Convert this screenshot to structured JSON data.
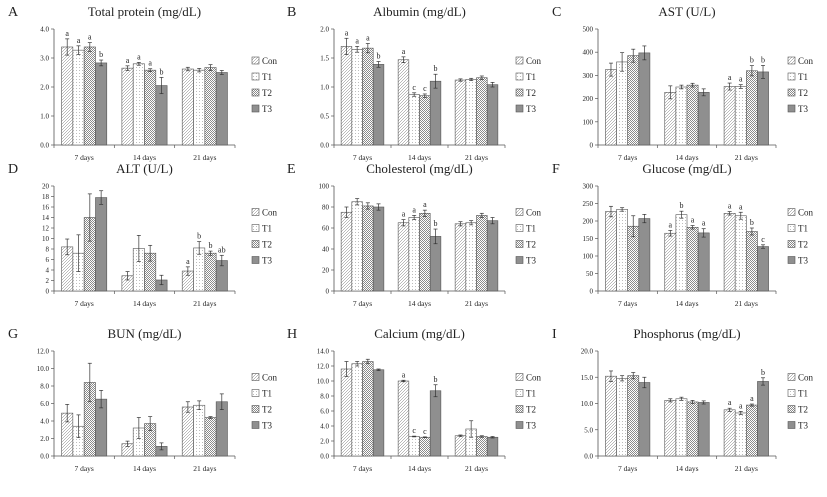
{
  "legend": [
    "Con",
    "T1",
    "T2",
    "T3"
  ],
  "categories": [
    "7 days",
    "14 days",
    "21 days"
  ],
  "series_colors": [
    "#ffffff",
    "#f4f4f4",
    "#e6e6e6",
    "#8f8f8f"
  ],
  "chart_data": [
    {
      "type": "bar",
      "label": "A",
      "title": "Total protein (mg/dL)",
      "categories": [
        "7 days",
        "14 days",
        "21 days"
      ],
      "ylim": [
        0,
        4
      ],
      "yticks": [
        "0.0",
        "1.0",
        "2.0",
        "3.0",
        "4.0"
      ],
      "series": [
        {
          "name": "Con",
          "values": [
            3.38,
            2.65,
            2.62
          ],
          "errors": [
            0.28,
            0.08,
            0.06
          ],
          "sig": [
            "a",
            "a",
            ""
          ]
        },
        {
          "name": "T1",
          "values": [
            3.27,
            2.8,
            2.58
          ],
          "errors": [
            0.15,
            0.05,
            0.06
          ],
          "sig": [
            "a",
            "a",
            ""
          ]
        },
        {
          "name": "T2",
          "values": [
            3.38,
            2.58,
            2.67
          ],
          "errors": [
            0.15,
            0.05,
            0.1
          ],
          "sig": [
            "a",
            "a",
            ""
          ]
        },
        {
          "name": "T3",
          "values": [
            2.83,
            2.05,
            2.5
          ],
          "errors": [
            0.1,
            0.28,
            0.07
          ],
          "sig": [
            "b",
            "b",
            ""
          ]
        }
      ]
    },
    {
      "type": "bar",
      "label": "B",
      "title": "Albumin (mg/dL)",
      "categories": [
        "7 days",
        "14 days",
        "21 days"
      ],
      "ylim": [
        0,
        2
      ],
      "yticks": [
        "0.0",
        "0.5",
        "1.0",
        "1.5",
        "2.0"
      ],
      "series": [
        {
          "name": "Con",
          "values": [
            1.7,
            1.47,
            1.12
          ],
          "errors": [
            0.14,
            0.05,
            0.02
          ],
          "sig": [
            "a",
            "a",
            ""
          ]
        },
        {
          "name": "T1",
          "values": [
            1.65,
            0.87,
            1.13
          ],
          "errors": [
            0.05,
            0.03,
            0.02
          ],
          "sig": [
            "a",
            "c",
            ""
          ]
        },
        {
          "name": "T2",
          "values": [
            1.67,
            0.85,
            1.16
          ],
          "errors": [
            0.08,
            0.03,
            0.03
          ],
          "sig": [
            "a",
            "c",
            ""
          ]
        },
        {
          "name": "T3",
          "values": [
            1.39,
            1.1,
            1.04
          ],
          "errors": [
            0.05,
            0.12,
            0.04
          ],
          "sig": [
            "b",
            "b",
            ""
          ]
        }
      ]
    },
    {
      "type": "bar",
      "label": "C",
      "title": "AST (U/L)",
      "categories": [
        "7 days",
        "14 days",
        "21 days"
      ],
      "ylim": [
        0,
        500
      ],
      "yticks": [
        "0",
        "100",
        "200",
        "300",
        "400",
        "500"
      ],
      "series": [
        {
          "name": "Con",
          "values": [
            325,
            227,
            252
          ],
          "errors": [
            28,
            28,
            15
          ],
          "sig": [
            "",
            "",
            "a"
          ]
        },
        {
          "name": "T1",
          "values": [
            358,
            250,
            252
          ],
          "errors": [
            40,
            8,
            8
          ],
          "sig": [
            "",
            "",
            "a"
          ]
        },
        {
          "name": "T2",
          "values": [
            385,
            258,
            320
          ],
          "errors": [
            28,
            8,
            22
          ],
          "sig": [
            "",
            "",
            "b"
          ]
        },
        {
          "name": "T3",
          "values": [
            397,
            227,
            315
          ],
          "errors": [
            30,
            15,
            28
          ],
          "sig": [
            "",
            "",
            "b"
          ]
        }
      ]
    },
    {
      "type": "bar",
      "label": "D",
      "title": "ALT (U/L)",
      "categories": [
        "7 days",
        "14 days",
        "21 days"
      ],
      "ylim": [
        0,
        20
      ],
      "yticks": [
        "0",
        "2",
        "4",
        "6",
        "8",
        "10",
        "12",
        "14",
        "16",
        "18",
        "20"
      ],
      "series": [
        {
          "name": "Con",
          "values": [
            8.4,
            2.9,
            3.8
          ],
          "errors": [
            1.5,
            0.8,
            0.8
          ],
          "sig": [
            "",
            "",
            "a"
          ]
        },
        {
          "name": "T1",
          "values": [
            7.2,
            8.1,
            8.2
          ],
          "errors": [
            3.5,
            2.5,
            1.2
          ],
          "sig": [
            "",
            "",
            "b"
          ]
        },
        {
          "name": "T2",
          "values": [
            14.0,
            7.2,
            7.2
          ],
          "errors": [
            4.5,
            1.5,
            0.4
          ],
          "sig": [
            "",
            "",
            "b"
          ]
        },
        {
          "name": "T3",
          "values": [
            17.8,
            2.1,
            5.8
          ],
          "errors": [
            1.3,
            0.9,
            1.0
          ],
          "sig": [
            "",
            "",
            "ab"
          ]
        }
      ]
    },
    {
      "type": "bar",
      "label": "E",
      "title": "Cholesterol (mg/dL)",
      "categories": [
        "7 days",
        "14 days",
        "21 days"
      ],
      "ylim": [
        0,
        100
      ],
      "yticks": [
        "0",
        "20",
        "40",
        "60",
        "80",
        "100"
      ],
      "series": [
        {
          "name": "Con",
          "values": [
            75,
            65,
            64
          ],
          "errors": [
            5,
            3,
            2
          ],
          "sig": [
            "",
            "a",
            ""
          ]
        },
        {
          "name": "T1",
          "values": [
            85,
            70,
            65
          ],
          "errors": [
            3,
            2,
            2
          ],
          "sig": [
            "",
            "a",
            ""
          ]
        },
        {
          "name": "T2",
          "values": [
            81,
            74,
            72
          ],
          "errors": [
            3,
            3,
            2
          ],
          "sig": [
            "",
            "a",
            ""
          ]
        },
        {
          "name": "T3",
          "values": [
            80,
            52,
            67
          ],
          "errors": [
            3,
            7,
            3
          ],
          "sig": [
            "",
            "b",
            ""
          ]
        }
      ]
    },
    {
      "type": "bar",
      "label": "F",
      "title": "Glucose (mg/dL)",
      "categories": [
        "7 days",
        "14 days",
        "21 days"
      ],
      "ylim": [
        0,
        300
      ],
      "yticks": [
        "0",
        "50",
        "100",
        "150",
        "200",
        "250",
        "300"
      ],
      "series": [
        {
          "name": "Con",
          "values": [
            227,
            165,
            222
          ],
          "errors": [
            15,
            8,
            5
          ],
          "sig": [
            "",
            "a",
            "a"
          ]
        },
        {
          "name": "T1",
          "values": [
            233,
            218,
            215
          ],
          "errors": [
            5,
            10,
            10
          ],
          "sig": [
            "",
            "b",
            "a"
          ]
        },
        {
          "name": "T2",
          "values": [
            185,
            182,
            170
          ],
          "errors": [
            30,
            5,
            10
          ],
          "sig": [
            "",
            "a",
            "b"
          ]
        },
        {
          "name": "T3",
          "values": [
            207,
            166,
            127
          ],
          "errors": [
            12,
            12,
            5
          ],
          "sig": [
            "",
            "a",
            "c"
          ]
        }
      ]
    },
    {
      "type": "bar",
      "label": "G",
      "title": "BUN (mg/dL)",
      "categories": [
        "7 days",
        "14 days",
        "21 days"
      ],
      "ylim": [
        0,
        12
      ],
      "yticks": [
        "0.0",
        "2.0",
        "4.0",
        "6.0",
        "8.0",
        "10.0",
        "12.0"
      ],
      "series": [
        {
          "name": "Con",
          "values": [
            4.9,
            1.4,
            5.6
          ],
          "errors": [
            1.0,
            0.3,
            0.6
          ],
          "sig": [
            "",
            "",
            ""
          ]
        },
        {
          "name": "T1",
          "values": [
            3.4,
            3.2,
            5.8
          ],
          "errors": [
            1.3,
            1.2,
            0.5
          ],
          "sig": [
            "",
            "",
            ""
          ]
        },
        {
          "name": "T2",
          "values": [
            8.4,
            3.7,
            4.4
          ],
          "errors": [
            2.2,
            0.8,
            0.1
          ],
          "sig": [
            "",
            "",
            ""
          ]
        },
        {
          "name": "T3",
          "values": [
            6.5,
            1.1,
            6.2
          ],
          "errors": [
            1.0,
            0.4,
            0.9
          ],
          "sig": [
            "",
            "",
            ""
          ]
        }
      ]
    },
    {
      "type": "bar",
      "label": "H",
      "title": "Calcium (mg/dL)",
      "categories": [
        "7 days",
        "14 days",
        "21 days"
      ],
      "ylim": [
        0,
        14
      ],
      "yticks": [
        "0.0",
        "2.0",
        "4.0",
        "6.0",
        "8.0",
        "10.0",
        "12.0",
        "14.0"
      ],
      "series": [
        {
          "name": "Con",
          "values": [
            11.6,
            10.0,
            2.7
          ],
          "errors": [
            1.0,
            0.1,
            0.1
          ],
          "sig": [
            "",
            "a",
            ""
          ]
        },
        {
          "name": "T1",
          "values": [
            12.3,
            2.6,
            3.6
          ],
          "errors": [
            0.3,
            0.05,
            1.1
          ],
          "sig": [
            "",
            "c",
            ""
          ]
        },
        {
          "name": "T2",
          "values": [
            12.6,
            2.5,
            2.6
          ],
          "errors": [
            0.3,
            0.05,
            0.1
          ],
          "sig": [
            "",
            "c",
            ""
          ]
        },
        {
          "name": "T3",
          "values": [
            11.5,
            8.7,
            2.5
          ],
          "errors": [
            0.1,
            0.8,
            0.1
          ],
          "sig": [
            "",
            "b",
            ""
          ]
        }
      ]
    },
    {
      "type": "bar",
      "label": "I",
      "title": "Phosphorus (mg/dL)",
      "categories": [
        "7 days",
        "14 days",
        "21 days"
      ],
      "ylim": [
        0,
        20
      ],
      "yticks": [
        "0.0",
        "5.0",
        "10.0",
        "15.0",
        "20.0"
      ],
      "series": [
        {
          "name": "Con",
          "values": [
            15.2,
            10.6,
            8.8
          ],
          "errors": [
            1.0,
            0.3,
            0.3
          ],
          "sig": [
            "",
            "",
            "a"
          ]
        },
        {
          "name": "T1",
          "values": [
            14.8,
            10.9,
            8.2
          ],
          "errors": [
            0.5,
            0.3,
            0.3
          ],
          "sig": [
            "",
            "",
            "a"
          ]
        },
        {
          "name": "T2",
          "values": [
            15.3,
            10.3,
            9.7
          ],
          "errors": [
            0.6,
            0.3,
            0.2
          ],
          "sig": [
            "",
            "",
            "a"
          ]
        },
        {
          "name": "T3",
          "values": [
            14.0,
            10.2,
            14.2
          ],
          "errors": [
            1.0,
            0.3,
            0.7
          ],
          "sig": [
            "",
            "",
            "b"
          ]
        }
      ]
    }
  ]
}
